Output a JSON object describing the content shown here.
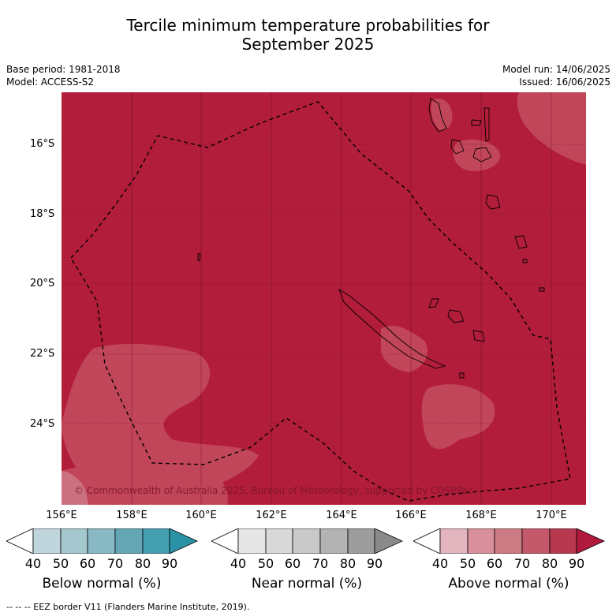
{
  "title_line1": "Tercile minimum temperature probabilities for",
  "title_line2": "September 2025",
  "base_period": "Base period: 1981-2018",
  "model": "Model: ACCESS-S2",
  "model_run": "Model run: 14/06/2025",
  "issued": "Issued: 16/06/2025",
  "lat_labels": [
    "16°S",
    "18°S",
    "20°S",
    "22°S",
    "24°S"
  ],
  "lon_labels": [
    "156°E",
    "158°E",
    "160°E",
    "162°E",
    "164°E",
    "166°E",
    "168°E",
    "170°E"
  ],
  "copyright": "© Commonwealth of Australia 2025, Bureau of Meteorology, supported by COSPPac",
  "colorbars": [
    {
      "title": "Below normal (%)",
      "ticks": [
        "40",
        "50",
        "60",
        "70",
        "80",
        "90"
      ],
      "colors": [
        "#ffffff",
        "#c0d5db",
        "#a5c8ce",
        "#88b9c4",
        "#64a6b3",
        "#44a0b1",
        "#2b92a5"
      ]
    },
    {
      "title": "Near normal (%)",
      "ticks": [
        "40",
        "50",
        "60",
        "70",
        "80",
        "90"
      ],
      "colors": [
        "#ffffff",
        "#e6e6e6",
        "#d9d9d9",
        "#c9c9c9",
        "#b3b3b3",
        "#9d9d9d",
        "#8a8a8a"
      ]
    },
    {
      "title": "Above normal (%)",
      "ticks": [
        "40",
        "50",
        "60",
        "70",
        "80",
        "90"
      ],
      "colors": [
        "#ffffff",
        "#e3b5bf",
        "#d98f9c",
        "#cc7a83",
        "#c4596b",
        "#b7384f",
        "#b01a3c"
      ]
    }
  ],
  "legend_note": "--  --  -- EEZ border V11 (Flanders Marine Institute, 2019).",
  "colors": {
    "above_80_90": "#b21d3b",
    "above_70_80": "#c24659",
    "above_60_70": "#cc7180"
  }
}
